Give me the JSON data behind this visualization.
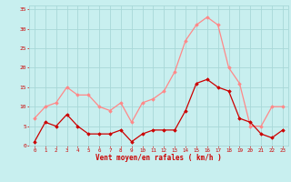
{
  "hours": [
    0,
    1,
    2,
    3,
    4,
    5,
    6,
    7,
    8,
    9,
    10,
    11,
    12,
    13,
    14,
    15,
    16,
    17,
    18,
    19,
    20,
    21,
    22,
    23
  ],
  "vent_moyen": [
    1,
    6,
    5,
    8,
    5,
    3,
    3,
    3,
    4,
    1,
    3,
    4,
    4,
    4,
    9,
    16,
    17,
    15,
    14,
    7,
    6,
    3,
    2,
    4
  ],
  "vent_rafales": [
    7,
    10,
    11,
    15,
    13,
    13,
    10,
    9,
    11,
    6,
    11,
    12,
    14,
    19,
    27,
    31,
    33,
    31,
    20,
    16,
    5,
    5,
    10,
    10
  ],
  "bg_color": "#c8efef",
  "grid_color": "#a8d8d8",
  "line_moyen_color": "#cc0000",
  "line_rafales_color": "#ff8888",
  "xlabel": "Vent moyen/en rafales ( km/h )",
  "ylabel_ticks": [
    0,
    5,
    10,
    15,
    20,
    25,
    30,
    35
  ],
  "xlabel_color": "#cc0000",
  "tick_color": "#cc0000",
  "ylim": [
    0,
    36
  ],
  "xlim": [
    -0.5,
    23.5
  ]
}
